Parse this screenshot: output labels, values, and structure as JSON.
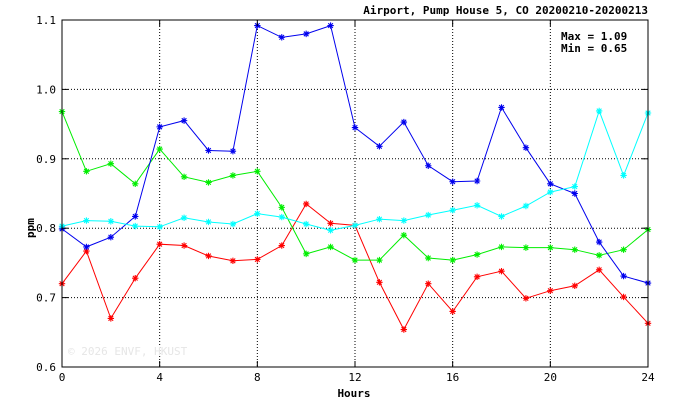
{
  "chart_data": {
    "type": "line",
    "title": "Airport, Pump House 5, CO 20200210-20200213",
    "xlabel": "Hours",
    "ylabel": "ppm",
    "xlim": [
      0,
      24
    ],
    "ylim": [
      0.6,
      1.1
    ],
    "xticks": [
      0,
      4,
      8,
      12,
      16,
      20,
      24
    ],
    "yticks": [
      0.6,
      0.7,
      0.8,
      0.9,
      1.0,
      1.1
    ],
    "ytick_labels": [
      "0.6",
      "0.7",
      "0.8",
      "0.9",
      "1.0",
      "1.1"
    ],
    "grid": true,
    "annotations": {
      "max": "Max = 1.09",
      "min": "Min = 0.65"
    },
    "watermark": "© 2026 ENVF, HKUST",
    "marker": "asterisk",
    "x": [
      0,
      1,
      2,
      3,
      4,
      5,
      6,
      7,
      8,
      9,
      10,
      11,
      12,
      13,
      14,
      15,
      16,
      17,
      18,
      19,
      20,
      21,
      22,
      23,
      24
    ],
    "series": [
      {
        "color": "#ff0000",
        "values": [
          0.72,
          0.767,
          0.67,
          0.728,
          0.777,
          0.775,
          0.76,
          0.753,
          0.755,
          0.775,
          0.835,
          0.807,
          0.804,
          0.722,
          0.654,
          0.72,
          0.68,
          0.73,
          0.738,
          0.699,
          0.71,
          0.717,
          0.74,
          0.701,
          0.663
        ]
      },
      {
        "color": "#00ee00",
        "values": [
          0.968,
          0.882,
          0.893,
          0.864,
          0.914,
          0.874,
          0.866,
          0.876,
          0.882,
          0.83,
          0.763,
          0.773,
          0.754,
          0.754,
          0.79,
          0.757,
          0.754,
          0.762,
          0.773,
          0.772,
          0.772,
          0.769,
          0.761,
          0.769,
          0.798
        ]
      },
      {
        "color": "#0000ee",
        "values": [
          0.799,
          0.773,
          0.787,
          0.817,
          0.946,
          0.955,
          0.912,
          0.911,
          1.092,
          1.075,
          1.08,
          1.092,
          0.945,
          0.918,
          0.953,
          0.89,
          0.867,
          0.868,
          0.974,
          0.916,
          0.864,
          0.85,
          0.78,
          0.731,
          0.721
        ]
      },
      {
        "color": "#00ffff",
        "values": [
          0.803,
          0.811,
          0.81,
          0.803,
          0.802,
          0.815,
          0.809,
          0.806,
          0.821,
          0.816,
          0.806,
          0.797,
          0.804,
          0.813,
          0.811,
          0.819,
          0.826,
          0.833,
          0.817,
          0.832,
          0.852,
          0.86,
          0.969,
          0.876,
          0.966
        ]
      }
    ]
  }
}
